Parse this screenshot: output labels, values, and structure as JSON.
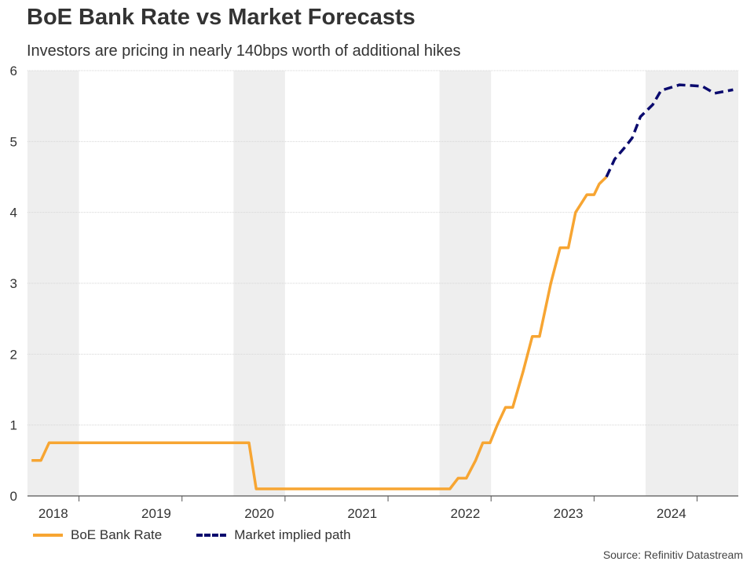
{
  "colors": {
    "bank_rate": "#f7a532",
    "market_path": "#0a0a6e",
    "band": "#eeeeee",
    "axis": "#555555"
  },
  "chart_data": {
    "type": "line",
    "title": "BoE Bank Rate vs Market Forecasts",
    "subtitle": "Investors are pricing in nearly 140bps worth of additional hikes",
    "source": "Source: Refinitiv Datastream",
    "xlabel": "",
    "ylabel": "",
    "xlim": [
      2017.75,
      2024.65
    ],
    "ylim": [
      0,
      6
    ],
    "y_ticks": [
      0,
      1,
      2,
      3,
      4,
      5,
      6
    ],
    "x_tick_labels": [
      {
        "label": "2018",
        "value": 2018.0
      },
      {
        "label": "2019",
        "value": 2019.0
      },
      {
        "label": "2020",
        "value": 2020.0
      },
      {
        "label": "2021",
        "value": 2021.0
      },
      {
        "label": "2022",
        "value": 2022.0
      },
      {
        "label": "2023",
        "value": 2023.0
      },
      {
        "label": "2024",
        "value": 2024.0
      }
    ],
    "year_boundaries": [
      2018.25,
      2019.25,
      2020.25,
      2021.25,
      2022.25,
      2023.25,
      2024.25
    ],
    "shaded_years": [
      [
        2017.75,
        2018.25
      ],
      [
        2019.75,
        2020.25
      ],
      [
        2021.75,
        2022.25
      ],
      [
        2023.75,
        2024.65
      ]
    ],
    "grid": true,
    "legend": "bottom-left",
    "series": [
      {
        "name": "BoE Bank Rate",
        "style": "solid",
        "x": [
          2017.79,
          2017.88,
          2017.96,
          2018.1,
          2019.9,
          2019.97,
          2021.85,
          2021.93,
          2022.01,
          2022.1,
          2022.17,
          2022.24,
          2022.31,
          2022.39,
          2022.46,
          2022.56,
          2022.65,
          2022.72,
          2022.83,
          2022.92,
          2023.0,
          2023.07,
          2023.18,
          2023.25,
          2023.3,
          2023.37
        ],
        "values": [
          0.5,
          0.5,
          0.75,
          0.75,
          0.75,
          0.1,
          0.1,
          0.25,
          0.25,
          0.5,
          0.75,
          0.75,
          1.0,
          1.25,
          1.25,
          1.75,
          2.25,
          2.25,
          3.0,
          3.5,
          3.5,
          4.0,
          4.25,
          4.25,
          4.4,
          4.5
        ]
      },
      {
        "name": "Market implied path",
        "style": "dashed",
        "x": [
          2023.37,
          2023.45,
          2023.55,
          2023.62,
          2023.7,
          2023.82,
          2023.9,
          2024.08,
          2024.3,
          2024.42,
          2024.6
        ],
        "values": [
          4.5,
          4.75,
          4.92,
          5.05,
          5.35,
          5.52,
          5.72,
          5.8,
          5.78,
          5.68,
          5.73
        ]
      }
    ]
  }
}
